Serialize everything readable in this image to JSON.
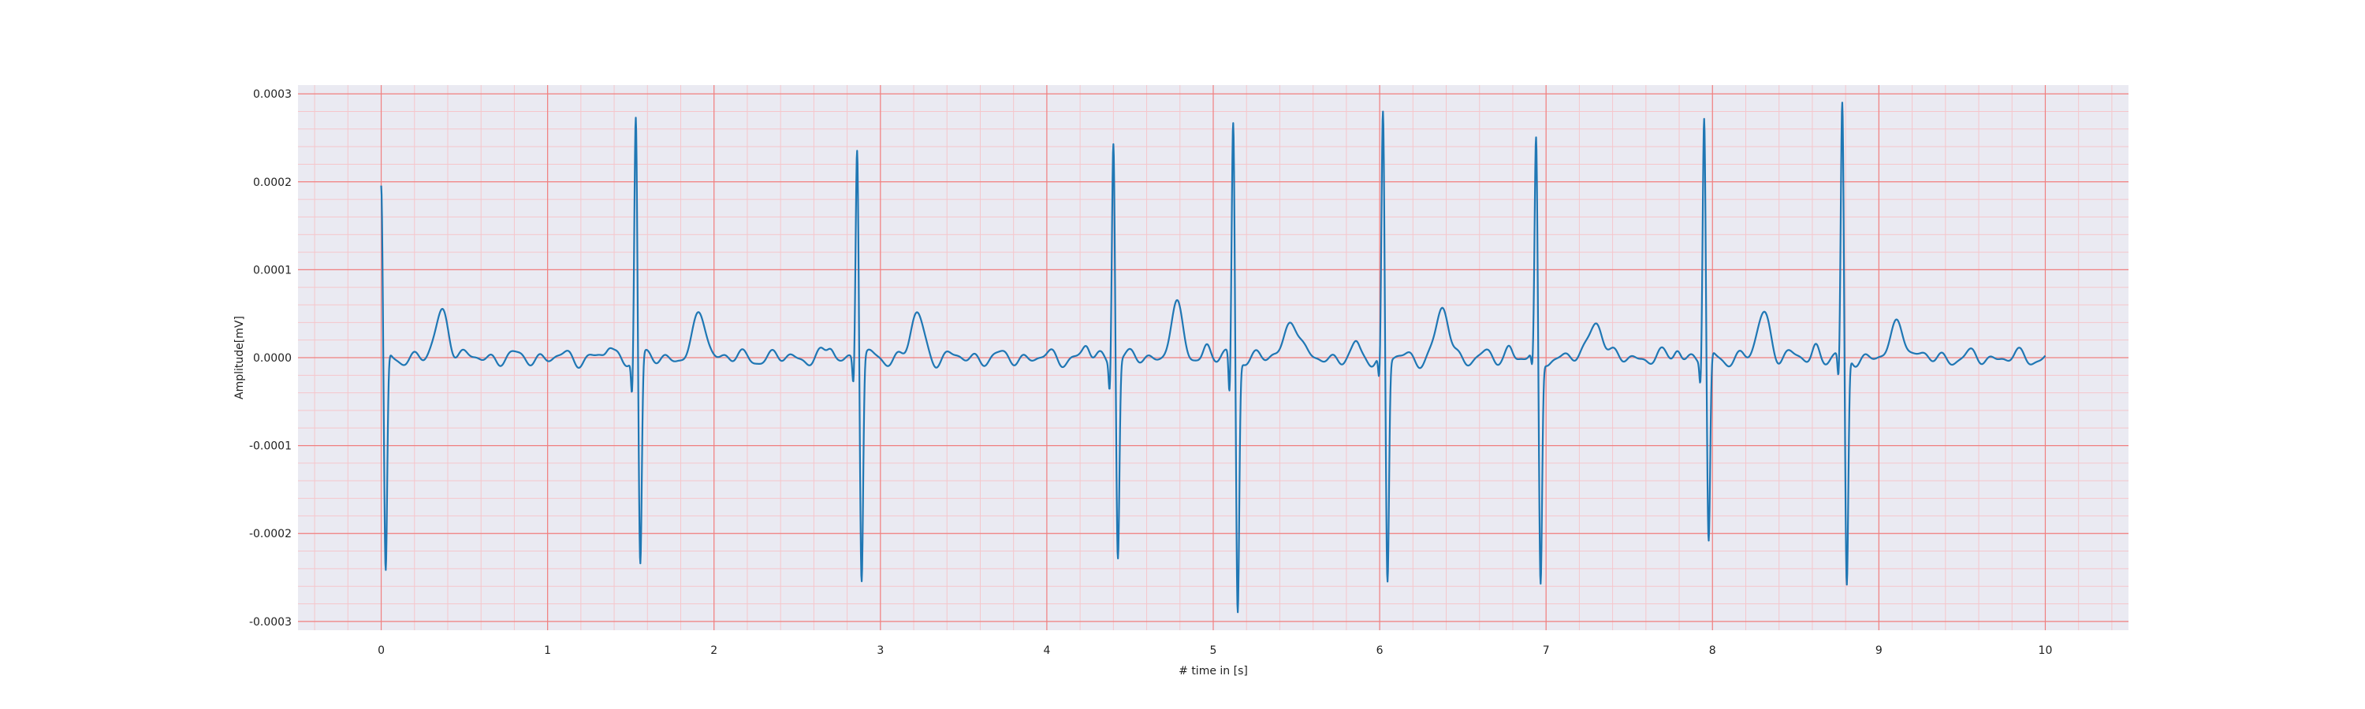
{
  "chart_data": {
    "type": "line",
    "title": "",
    "xlabel": "# time in [s]",
    "ylabel": "Amplitude[mV]",
    "xlim": [
      -0.5,
      10.5
    ],
    "ylim": [
      -0.00031,
      0.00031
    ],
    "x_ticks": [
      0,
      1,
      2,
      3,
      4,
      5,
      6,
      7,
      8,
      9,
      10
    ],
    "x_tick_labels": [
      "0",
      "1",
      "2",
      "3",
      "4",
      "5",
      "6",
      "7",
      "8",
      "9",
      "10"
    ],
    "y_ticks": [
      0.0003,
      0.0002,
      0.0001,
      0.0,
      -0.0001,
      -0.0002,
      -0.0003
    ],
    "y_tick_labels": [
      "0.0003",
      "0.0002",
      "0.0001",
      "0.0000",
      "-0.0001",
      "-0.0002",
      "-0.0003"
    ],
    "grid": {
      "major": true,
      "minor": true,
      "major_color": "#f08080",
      "minor_color": "#f5c6cb"
    },
    "background_color": "#eaeaf2",
    "legend": "none",
    "series": [
      {
        "color": "#1f77b4",
        "x_range": [
          0,
          10
        ],
        "beats": [
          {
            "t": 0.0,
            "r": 0.000193,
            "s": -0.000253,
            "q": -5e-06
          },
          {
            "t": 1.53,
            "r": 0.000276,
            "s": -0.00024,
            "q": -4.2e-05
          },
          {
            "t": 2.86,
            "r": 0.000245,
            "s": -0.000253,
            "q": -3.3e-05
          },
          {
            "t": 4.4,
            "r": 0.000253,
            "s": -0.000226,
            "q": -3.5e-05
          },
          {
            "t": 5.12,
            "r": 0.00027,
            "s": -0.000287,
            "q": -5.2e-05
          },
          {
            "t": 6.02,
            "r": 0.000278,
            "s": -0.000256,
            "q": -3e-05
          },
          {
            "t": 6.94,
            "r": 0.000243,
            "s": -0.00026,
            "q": -2e-05
          },
          {
            "t": 7.95,
            "r": 0.000274,
            "s": -0.000218,
            "q": -3e-05
          },
          {
            "t": 8.78,
            "r": 0.000286,
            "s": -0.000265,
            "q": -3.3e-05
          }
        ],
        "t_waves": [
          {
            "t": 0.37,
            "a": 5.4e-05
          },
          {
            "t": 1.92,
            "a": 5e-05
          },
          {
            "t": 3.22,
            "a": 4.8e-05
          },
          {
            "t": 4.78,
            "a": 5.4e-05
          },
          {
            "t": 5.47,
            "a": 4.8e-05
          },
          {
            "t": 6.38,
            "a": 5.4e-05
          },
          {
            "t": 7.3,
            "a": 4.6e-05
          },
          {
            "t": 8.31,
            "a": 5e-05
          },
          {
            "t": 9.12,
            "a": 4.3e-05
          }
        ]
      }
    ]
  }
}
